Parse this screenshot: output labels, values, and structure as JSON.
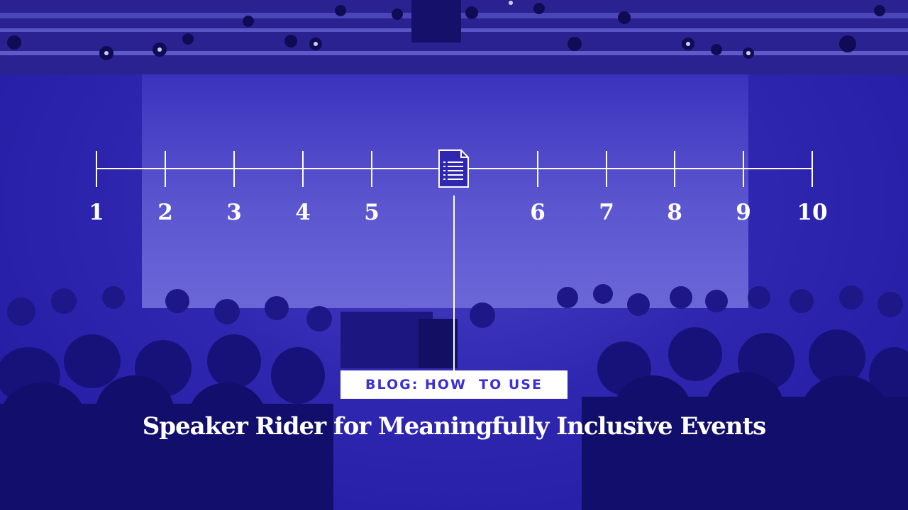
{
  "timeline": {
    "ticks": [
      "1",
      "2",
      "3",
      "4",
      "5",
      "6",
      "7",
      "8",
      "9",
      "10"
    ],
    "marker_icon": "document-icon"
  },
  "tag_label": "BLOG: HOW  TO USE",
  "headline": "Speaker Rider for Meaningfully Inclusive Events",
  "colors": {
    "overlay": "#2f27b0",
    "accent": "#3b2fd6",
    "text": "#ffffff"
  }
}
